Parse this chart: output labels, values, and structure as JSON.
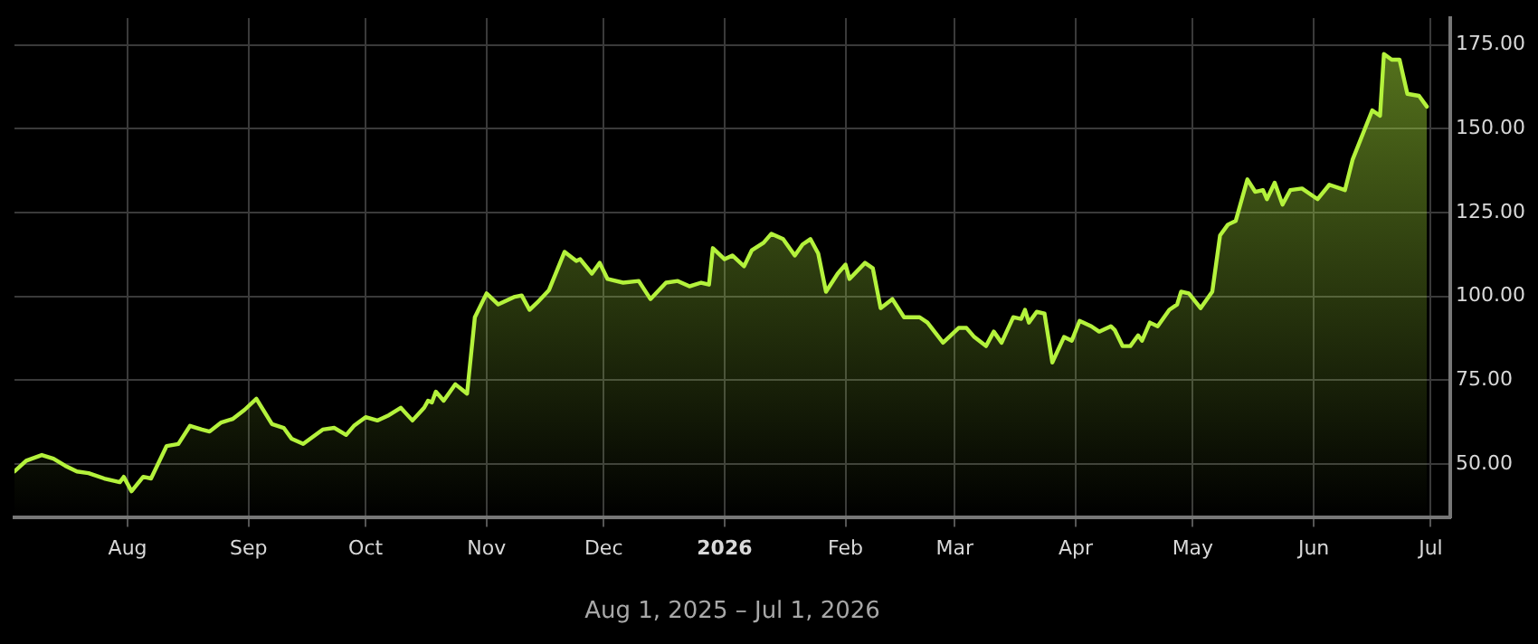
{
  "chart_data": {
    "type": "area",
    "xlabel": "Aug 1, 2025 – Jul 1, 2026",
    "color": "#b4f23c",
    "grid": true,
    "legend": false,
    "marker": "none",
    "line_style": "solid",
    "x": [
      "2025-07-03",
      "2025-07-06",
      "2025-07-10",
      "2025-07-13",
      "2025-07-16",
      "2025-07-19",
      "2025-07-22",
      "2025-07-26",
      "2025-07-30",
      "2025-07-31",
      "2025-08-02",
      "2025-08-05",
      "2025-08-07",
      "2025-08-11",
      "2025-08-14",
      "2025-08-17",
      "2025-08-20",
      "2025-08-22",
      "2025-08-25",
      "2025-08-28",
      "2025-08-31",
      "2025-09-03",
      "2025-09-07",
      "2025-09-10",
      "2025-09-12",
      "2025-09-15",
      "2025-09-20",
      "2025-09-23",
      "2025-09-26",
      "2025-09-28",
      "2025-10-01",
      "2025-10-04",
      "2025-10-07",
      "2025-10-10",
      "2025-10-13",
      "2025-10-16",
      "2025-10-17",
      "2025-10-18",
      "2025-10-19",
      "2025-10-21",
      "2025-10-24",
      "2025-10-27",
      "2025-10-29",
      "2025-11-01",
      "2025-11-04",
      "2025-11-08",
      "2025-11-10",
      "2025-11-12",
      "2025-11-14",
      "2025-11-17",
      "2025-11-21",
      "2025-11-24",
      "2025-11-25",
      "2025-11-28",
      "2025-11-30",
      "2025-12-02",
      "2025-12-06",
      "2025-12-10",
      "2025-12-13",
      "2025-12-17",
      "2025-12-20",
      "2025-12-23",
      "2025-12-26",
      "2025-12-28",
      "2025-12-29",
      "2026-01-01",
      "2026-01-03",
      "2026-01-06",
      "2026-01-08",
      "2026-01-11",
      "2026-01-13",
      "2026-01-16",
      "2026-01-19",
      "2026-01-21",
      "2026-01-23",
      "2026-01-25",
      "2026-01-27",
      "2026-01-30",
      "2026-02-01",
      "2026-02-02",
      "2026-02-06",
      "2026-02-08",
      "2026-02-10",
      "2026-02-13",
      "2026-02-16",
      "2026-02-20",
      "2026-02-22",
      "2026-02-26",
      "2026-03-02",
      "2026-03-04",
      "2026-03-06",
      "2026-03-09",
      "2026-03-11",
      "2026-03-13",
      "2026-03-16",
      "2026-03-18",
      "2026-03-19",
      "2026-03-20",
      "2026-03-22",
      "2026-03-24",
      "2026-03-26",
      "2026-03-29",
      "2026-03-31",
      "2026-04-02",
      "2026-04-05",
      "2026-04-07",
      "2026-04-10",
      "2026-04-11",
      "2026-04-13",
      "2026-04-15",
      "2026-04-17",
      "2026-04-18",
      "2026-04-20",
      "2026-04-22",
      "2026-04-25",
      "2026-04-27",
      "2026-04-28",
      "2026-04-30",
      "2026-05-03",
      "2026-05-06",
      "2026-05-08",
      "2026-05-10",
      "2026-05-12",
      "2026-05-15",
      "2026-05-17",
      "2026-05-19",
      "2026-05-20",
      "2026-05-22",
      "2026-05-24",
      "2026-05-26",
      "2026-05-29",
      "2026-06-02",
      "2026-06-05",
      "2026-06-09",
      "2026-06-11",
      "2026-06-16",
      "2026-06-18",
      "2026-06-19",
      "2026-06-21",
      "2026-06-23",
      "2026-06-25",
      "2026-06-28",
      "2026-06-30"
    ],
    "values": [
      47.8,
      51,
      52.7,
      51.6,
      49.5,
      47.8,
      47.3,
      45.7,
      44.6,
      46.2,
      41.9,
      46.2,
      45.7,
      55.4,
      56,
      61.4,
      60.3,
      59.7,
      62.4,
      63.5,
      66.2,
      69.5,
      61.9,
      60.8,
      57.6,
      56,
      60.3,
      60.8,
      58.7,
      61.4,
      64,
      63,
      64.6,
      66.8,
      63,
      66.8,
      68.9,
      68.4,
      71.6,
      68.9,
      73.8,
      71,
      93.8,
      100.9,
      97.6,
      99.8,
      100.3,
      96,
      98.2,
      101.9,
      113.3,
      110.6,
      111.1,
      106.8,
      110,
      105.2,
      104.1,
      104.6,
      99.2,
      104.1,
      104.6,
      103,
      104.1,
      103.5,
      114.4,
      111.1,
      112.2,
      109,
      113.8,
      116,
      118.7,
      117.1,
      112.2,
      115.5,
      117.1,
      112.8,
      101.4,
      106.8,
      109.5,
      105.2,
      110,
      108.4,
      96.5,
      99.2,
      93.8,
      93.8,
      92.2,
      86.2,
      90.6,
      90.6,
      87.9,
      85.2,
      89.5,
      86.2,
      93.8,
      93.3,
      96,
      92.2,
      95.4,
      94.9,
      80.3,
      87.9,
      86.8,
      92.7,
      91.1,
      89.5,
      91.1,
      90,
      85.2,
      85.2,
      88.4,
      86.8,
      92.2,
      91.1,
      96,
      97.6,
      101.4,
      100.9,
      96.5,
      101.4,
      118.2,
      121.4,
      122.5,
      134.9,
      131.2,
      131.7,
      129,
      133.9,
      127.4,
      131.7,
      132.2,
      129,
      133.3,
      131.7,
      140.9,
      155.5,
      153.9,
      172.3,
      170.6,
      170.6,
      160.4,
      159.8,
      156.6
    ],
    "xlim": [
      "2025-07-03",
      "2026-07-06"
    ],
    "xticks": [
      {
        "value": "2025-08-01",
        "label": "Aug"
      },
      {
        "value": "2025-09-01",
        "label": "Sep"
      },
      {
        "value": "2025-10-01",
        "label": "Oct"
      },
      {
        "value": "2025-11-01",
        "label": "Nov"
      },
      {
        "value": "2025-12-01",
        "label": "Dec"
      },
      {
        "value": "2026-01-01",
        "label": "2026"
      },
      {
        "value": "2026-02-01",
        "label": "Feb"
      },
      {
        "value": "2026-03-01",
        "label": "Mar"
      },
      {
        "value": "2026-04-01",
        "label": "Apr"
      },
      {
        "value": "2026-05-01",
        "label": "May"
      },
      {
        "value": "2026-06-01",
        "label": "Jun"
      },
      {
        "value": "2026-07-01",
        "label": "Jul"
      }
    ],
    "ylim": [
      34,
      183
    ],
    "yticks": [
      {
        "value": 50,
        "label": "50.00"
      },
      {
        "value": 75,
        "label": "75.00"
      },
      {
        "value": 100,
        "label": "100.00"
      },
      {
        "value": 125,
        "label": "125.00"
      },
      {
        "value": 150,
        "label": "150.00"
      },
      {
        "value": 175,
        "label": "175.00"
      }
    ]
  }
}
